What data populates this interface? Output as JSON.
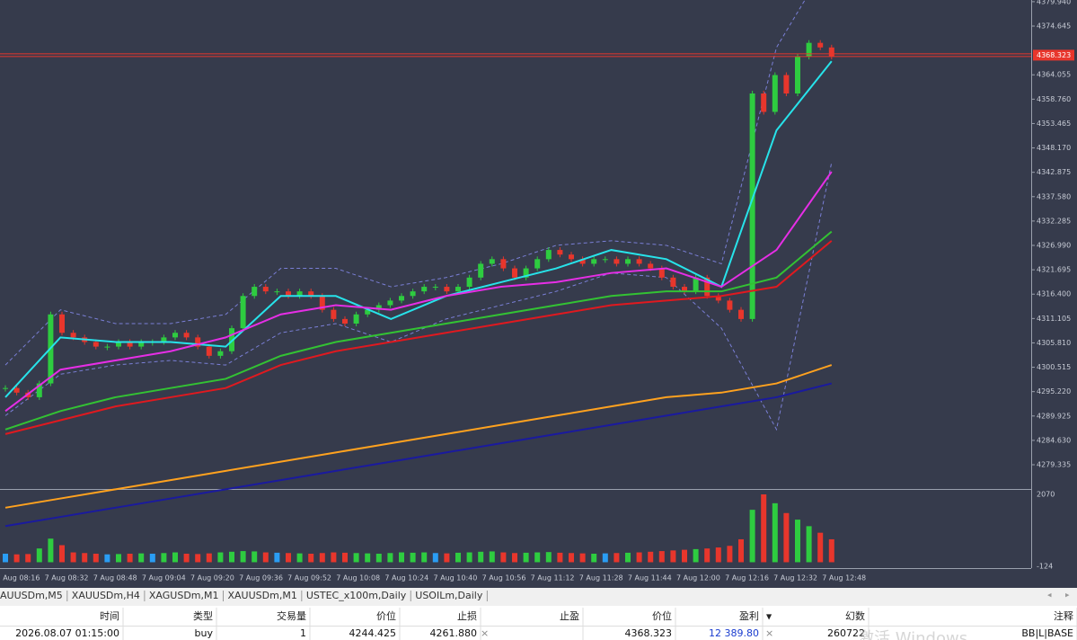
{
  "chart_data": {
    "type": "candlestick",
    "closes": [
      4296,
      4295,
      4294,
      4297,
      4312,
      4308,
      4307,
      4306,
      4305,
      4305,
      4306,
      4305,
      4306,
      4306,
      4307,
      4308,
      4307,
      4305,
      4303,
      4304,
      4309,
      4316,
      4318,
      4317,
      4317,
      4316,
      4317,
      4316,
      4313,
      4311,
      4310,
      4312,
      4313,
      4314,
      4315,
      4316,
      4317,
      4318,
      4318,
      4317,
      4318,
      4320,
      4323,
      4324,
      4322,
      4320,
      4322,
      4324,
      4326,
      4325,
      4324,
      4323,
      4324,
      4324,
      4323,
      4324,
      4323,
      4322,
      4320,
      4318,
      4317,
      4320,
      4316,
      4315,
      4313,
      4311,
      4360,
      4356,
      4364,
      4360,
      4368,
      4371,
      4370,
      4368
    ],
    "up_color": "#2ecc40",
    "down_color": "#e8362c",
    "ylim": [
      4274.26,
      4380.31
    ],
    "yticks": [
      {
        "value": 4379.94,
        "label": "4379.940"
      },
      4374.645,
      4364.055,
      {
        "value": 4358.76,
        "label": "4358.760"
      },
      4353.465,
      {
        "value": 4348.17,
        "label": "4348.170"
      },
      4342.875,
      {
        "value": 4337.58,
        "label": "4337.580"
      },
      4332.285,
      {
        "value": 4326.99,
        "label": "4326.990"
      },
      4321.695,
      {
        "value": 4316.4,
        "label": "4316.400"
      },
      4311.105,
      {
        "value": 4305.81,
        "label": "4305.810"
      },
      4300.515,
      {
        "value": 4295.22,
        "label": "4295.220"
      },
      4289.925,
      {
        "value": 4284.63,
        "label": "4284.630"
      },
      4279.335
    ],
    "current_price": 4368.323,
    "price_color": "#e8362c",
    "ma_lines": [
      {
        "color": "#27e3ea",
        "values": [
          4294,
          4307,
          4306,
          4306,
          4305,
          4316,
          4316,
          4311,
          4316,
          4319,
          4322,
          4326,
          4324,
          4318,
          4352,
          4367
        ]
      },
      {
        "color": "#e62ee6",
        "values": [
          4291,
          4300,
          4302,
          4304,
          4307,
          4312,
          4314,
          4313,
          4316,
          4318,
          4319,
          4321,
          4322,
          4318,
          4326,
          4343
        ]
      },
      {
        "color": "#33c233",
        "values": [
          4287,
          4291,
          4294,
          4296,
          4298,
          4303,
          4306,
          4308,
          4310,
          4312,
          4314,
          4316,
          4317,
          4317,
          4320,
          4330
        ]
      },
      {
        "color": "#e0191f",
        "values": [
          4286,
          4289,
          4292,
          4294,
          4296,
          4301,
          4304,
          4306,
          4308,
          4310,
          4312,
          4314,
          4315,
          4316,
          4318,
          4328
        ]
      },
      {
        "color": "#ffa21f",
        "values": [
          4270,
          4272,
          4274,
          4276,
          4278,
          4280,
          4282,
          4284,
          4286,
          4288,
          4290,
          4292,
          4294,
          4295,
          4297,
          4301
        ]
      },
      {
        "color": "#1a1a9e",
        "values": [
          4266,
          4268,
          4270,
          4272,
          4274,
          4276,
          4278,
          4280,
          4282,
          4284,
          4286,
          4288,
          4290,
          4292,
          4294,
          4297
        ]
      }
    ],
    "bands": {
      "color": "#7a7fd6",
      "upper": [
        4301,
        4313,
        4310,
        4310,
        4312,
        4322,
        4322,
        4318,
        4320,
        4323,
        4327,
        4328,
        4327,
        4323,
        4370,
        4390
      ],
      "lower": [
        4290,
        4299,
        4301,
        4302,
        4301,
        4308,
        4310,
        4306,
        4311,
        4314,
        4317,
        4321,
        4320,
        4309,
        4287,
        4345
      ]
    },
    "volume": {
      "values": [
        260,
        240,
        250,
        420,
        720,
        520,
        300,
        280,
        260,
        240,
        250,
        260,
        270,
        260,
        280,
        300,
        260,
        250,
        270,
        300,
        320,
        340,
        330,
        300,
        290,
        280,
        270,
        260,
        280,
        300,
        290,
        280,
        270,
        260,
        280,
        300,
        290,
        300,
        280,
        270,
        290,
        300,
        320,
        330,
        300,
        280,
        290,
        300,
        310,
        290,
        280,
        270,
        260,
        270,
        280,
        290,
        300,
        320,
        340,
        360,
        380,
        400,
        420,
        450,
        500,
        700,
        1600,
        2070,
        1800,
        1500,
        1300,
        1100,
        900,
        700
      ],
      "color": "#2a9df4",
      "ylim": [
        -124,
        2070
      ],
      "yticks": [
        2070,
        -124
      ]
    },
    "time_labels": [
      "7 Aug 08:16",
      "7 Aug 08:32",
      "7 Aug 08:48",
      "7 Aug 09:04",
      "7 Aug 09:20",
      "7 Aug 09:36",
      "7 Aug 09:52",
      "7 Aug 10:08",
      "7 Aug 10:24",
      "7 Aug 10:40",
      "7 Aug 10:56",
      "7 Aug 11:12",
      "7 Aug 11:28",
      "7 Aug 11:44",
      "7 Aug 12:00",
      "7 Aug 12:16",
      "7 Aug 12:32",
      "7 Aug 12:48"
    ]
  },
  "tabs": [
    "AUUSDm,M5",
    "XAUUSDm,H4",
    "XAGUSDm,M1",
    "XAUUSDm,M1",
    "USTEC_x100m,Daily",
    "USOILm,Daily"
  ],
  "table": {
    "headers": [
      "时间",
      "类型",
      "交易量",
      "价位",
      "止损",
      "止盈",
      "价位",
      "盈利",
      "幻数",
      "注释"
    ],
    "rows": [
      [
        "2026.08.07 01:15:00",
        "buy",
        "1",
        "4244.425",
        "4261.880",
        null,
        "4368.323",
        "12 389.80",
        "260722",
        "BB|L|BASE"
      ]
    ]
  },
  "watermark": "激活 Windows"
}
